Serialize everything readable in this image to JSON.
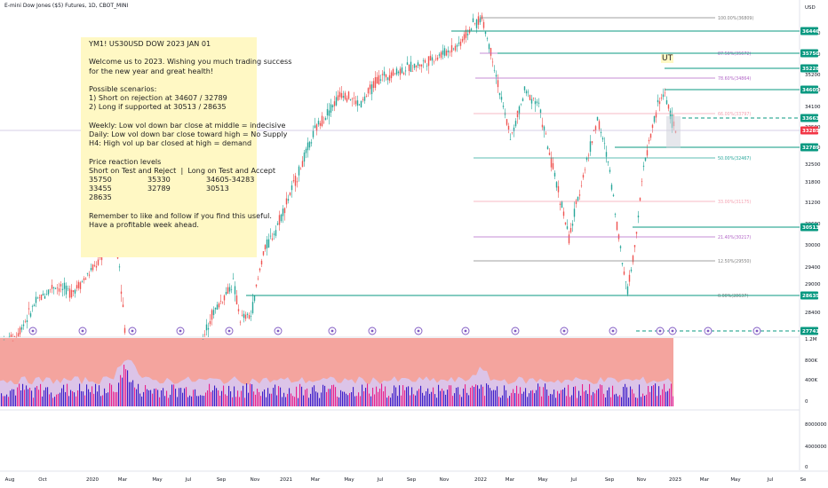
{
  "header": {
    "symbol_line": "E-mini Dow Jones ($5) Futures, 1D, CBOT_MINI",
    "currency": "USD"
  },
  "note": {
    "title": "YM1! US30USD DOW 2023 JAN 01",
    "greeting_1": "Welcome us to 2023. Wishing you much trading success",
    "greeting_2": "for the new year and great health!",
    "scen_head": "Possible scenarios:",
    "scen_1": "1) Short on rejection at 34607 / 32789",
    "scen_2": "2) Long if supported at 30513 / 28635",
    "obs_1": "Weekly: Low vol down bar close at middle = indecisive",
    "obs_2": "Daily: Low vol down bar close toward high = No Supply",
    "obs_3": "H4: High vol up bar closed at high = demand",
    "lv_head": "Price reaction levels",
    "lv_sub": "Short on Test and Reject  |  Long on Test and Accept",
    "lv_r1": [
      "35750",
      "35330",
      "34605-34283"
    ],
    "lv_r2": [
      "33455",
      "32789",
      "30513"
    ],
    "lv_r3": [
      "28635"
    ],
    "foot_1": "Remember to like and follow if you find this useful.",
    "foot_2": "Have a profitable week ahead."
  },
  "annotation": {
    "ut": "UT"
  },
  "colors": {
    "up": "#26a69a",
    "down": "#ef5350",
    "level_line": "#089981",
    "fib_pink": "#f4a0b0",
    "fib_purple": "#b266c7",
    "fib_grey": "#808080",
    "vol_bg": "#f4a49e",
    "vol_area": "#d9c8f0",
    "vol_bar_blue": "#3a1cc9",
    "vol_bar_pink": "#e91e8c",
    "event_circle": "#7e57c2",
    "price_tag": "#f23645"
  },
  "chart_data": {
    "type": "candlestick",
    "price_axis": {
      "ticks": [
        "36400",
        "35800",
        "35200",
        "34600",
        "34100",
        "33500",
        "32900",
        "32500",
        "31800",
        "31200",
        "30600",
        "30000",
        "29400",
        "29000",
        "28400"
      ],
      "range": [
        28000,
        36900
      ]
    },
    "volume_axis": {
      "ticks": [
        "1.2M",
        "800K",
        "400K",
        "0"
      ]
    },
    "lower_axis": {
      "ticks": [
        "8000000",
        "4000000",
        "0"
      ]
    },
    "x_axis": {
      "ticks": [
        "Aug",
        "Oct",
        "2020",
        "Mar",
        "May",
        "Jul",
        "Sep",
        "Nov",
        "2021",
        "Mar",
        "May",
        "Jul",
        "Sep",
        "Nov",
        "2022",
        "Mar",
        "May",
        "Jul",
        "Sep",
        "Nov",
        "2023",
        "Mar",
        "May",
        "Jul",
        "Se"
      ]
    },
    "level_tags": [
      {
        "label": "36446",
        "style": "solid"
      },
      {
        "label": "35750",
        "style": "solid"
      },
      {
        "label": "35228",
        "style": "solid"
      },
      {
        "label": "34605",
        "style": "solid"
      },
      {
        "label": "33663",
        "style": "dashed"
      },
      {
        "label": "33285",
        "style": "current"
      },
      {
        "label": "32789",
        "style": "solid"
      },
      {
        "label": "30513",
        "style": "solid"
      },
      {
        "label": "28635",
        "style": "solid"
      },
      {
        "label": "27741",
        "style": "dashed"
      }
    ],
    "fib_levels": [
      {
        "label": "100.00%(36809)"
      },
      {
        "label": "87.50%(35672)"
      },
      {
        "label": "78.60%(34864)"
      },
      {
        "label": "66.00%(33797)"
      },
      {
        "label": "50.00%(32467)"
      },
      {
        "label": "33.00%(31175)"
      },
      {
        "label": "21.40%(30217)"
      },
      {
        "label": "12.50%(29550)"
      },
      {
        "label": "0.00%(28637)"
      }
    ],
    "price_series_description": "Daily E-mini Dow futures rising from ~27000 (2019) through COVID crash (~18000, off-scale) to a peak near 36800 (Jan 2022), then declining to ~28600 (Sep/Oct 2022) and recovering to ~34600 (Dec 2022), last ~33285."
  }
}
